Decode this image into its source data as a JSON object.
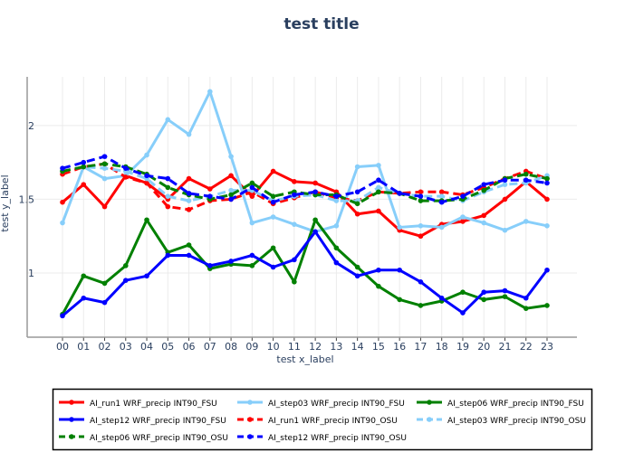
{
  "chart_data": {
    "type": "line",
    "title": "test title",
    "xlabel": "test x_label",
    "ylabel": "test y_label",
    "categories": [
      "00",
      "01",
      "02",
      "03",
      "04",
      "05",
      "06",
      "07",
      "08",
      "09",
      "10",
      "11",
      "12",
      "13",
      "14",
      "15",
      "16",
      "17",
      "18",
      "19",
      "20",
      "21",
      "22",
      "23"
    ],
    "yticks": [
      1,
      1.5,
      2
    ],
    "ytick_labels": [
      "1",
      "1.5",
      "2"
    ],
    "ylim": [
      0.565,
      2.33
    ],
    "grid": true,
    "legend_position": "bottom",
    "series": [
      {
        "name": "AI_run1 WRF_precip INT90_FSU",
        "color": "#ff0000",
        "dash": false,
        "values": [
          1.48,
          1.6,
          1.45,
          1.66,
          1.61,
          1.5,
          1.64,
          1.57,
          1.66,
          1.52,
          1.69,
          1.62,
          1.61,
          1.55,
          1.4,
          1.42,
          1.29,
          1.25,
          1.33,
          1.35,
          1.39,
          1.5,
          1.62,
          1.5
        ]
      },
      {
        "name": "AI_step03 WRF_precip INT90_FSU",
        "color": "#87cefa",
        "dash": false,
        "values": [
          1.34,
          1.72,
          1.64,
          1.66,
          1.8,
          2.04,
          1.94,
          2.23,
          1.79,
          1.34,
          1.38,
          1.33,
          1.28,
          1.32,
          1.72,
          1.73,
          1.31,
          1.32,
          1.31,
          1.38,
          1.34,
          1.29,
          1.35,
          1.32
        ]
      },
      {
        "name": "AI_step06 WRF_precip INT90_FSU",
        "color": "#008000",
        "dash": false,
        "values": [
          0.72,
          0.98,
          0.93,
          1.05,
          1.36,
          1.14,
          1.19,
          1.03,
          1.06,
          1.05,
          1.17,
          0.94,
          1.36,
          1.17,
          1.04,
          0.91,
          0.82,
          0.78,
          0.81,
          0.87,
          0.82,
          0.84,
          0.76,
          0.78
        ]
      },
      {
        "name": "AI_step12 WRF_precip INT90_FSU",
        "color": "#0000ff",
        "dash": false,
        "values": [
          0.71,
          0.83,
          0.8,
          0.95,
          0.98,
          1.12,
          1.12,
          1.05,
          1.08,
          1.12,
          1.04,
          1.09,
          1.28,
          1.07,
          0.98,
          1.02,
          1.02,
          0.94,
          0.83,
          0.73,
          0.87,
          0.88,
          0.83,
          1.02
        ]
      },
      {
        "name": "AI_run1 WRF_precip INT90_OSU",
        "color": "#ff0000",
        "dash": true,
        "values": [
          1.67,
          1.72,
          1.74,
          1.65,
          1.61,
          1.45,
          1.43,
          1.49,
          1.5,
          1.55,
          1.47,
          1.51,
          1.55,
          1.51,
          1.49,
          1.55,
          1.54,
          1.55,
          1.55,
          1.53,
          1.58,
          1.64,
          1.69,
          1.64
        ]
      },
      {
        "name": "AI_step03 WRF_precip INT90_OSU",
        "color": "#87cefa",
        "dash": true,
        "values": [
          1.69,
          1.72,
          1.71,
          1.69,
          1.64,
          1.52,
          1.49,
          1.52,
          1.56,
          1.56,
          1.49,
          1.52,
          1.53,
          1.49,
          1.49,
          1.58,
          1.54,
          1.52,
          1.52,
          1.49,
          1.55,
          1.6,
          1.61,
          1.66
        ]
      },
      {
        "name": "AI_step06 WRF_precip INT90_OSU",
        "color": "#008000",
        "dash": true,
        "values": [
          1.69,
          1.72,
          1.74,
          1.72,
          1.67,
          1.58,
          1.53,
          1.5,
          1.53,
          1.61,
          1.52,
          1.55,
          1.53,
          1.53,
          1.47,
          1.55,
          1.54,
          1.49,
          1.49,
          1.5,
          1.56,
          1.64,
          1.67,
          1.64
        ]
      },
      {
        "name": "AI_step12 WRF_precip INT90_OSU",
        "color": "#0000ff",
        "dash": true,
        "values": [
          1.71,
          1.75,
          1.79,
          1.71,
          1.66,
          1.64,
          1.54,
          1.52,
          1.5,
          1.58,
          1.48,
          1.53,
          1.55,
          1.52,
          1.55,
          1.63,
          1.54,
          1.52,
          1.48,
          1.52,
          1.6,
          1.63,
          1.63,
          1.61
        ]
      }
    ]
  }
}
